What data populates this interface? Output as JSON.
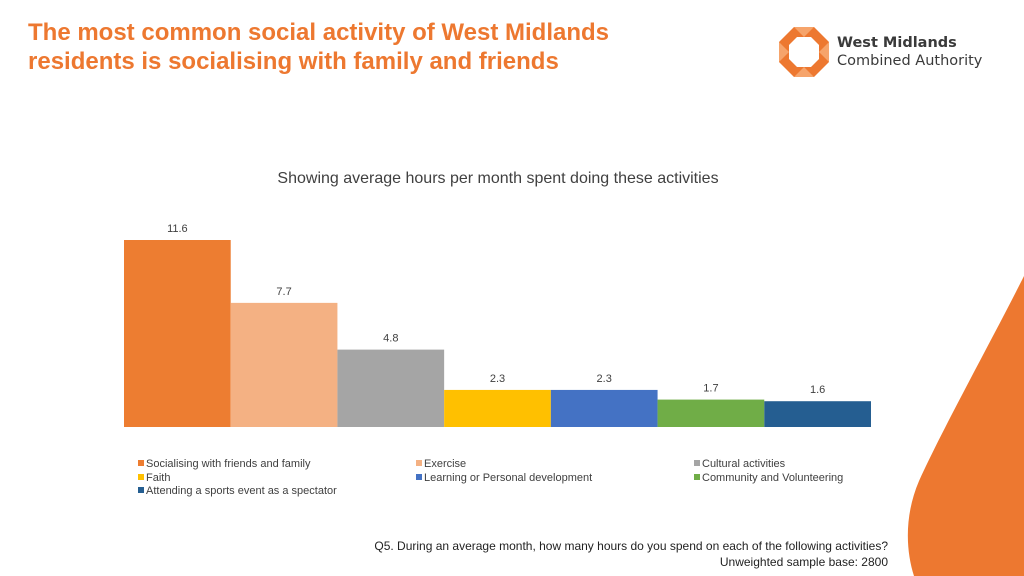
{
  "slide": {
    "title_line1": "The most common social activity of West Midlands",
    "title_line2": "residents is socialising with family and friends"
  },
  "logo": {
    "line1": "West Midlands",
    "line2": "Combined Authority",
    "mark_icon": "wmca-octagon-logo-icon"
  },
  "colors": {
    "title": "#ED7830",
    "accent": "#ED7830"
  },
  "chart_data": {
    "type": "bar",
    "title": "Showing average hours per month spent doing these activities",
    "xlabel": "",
    "ylabel": "",
    "ylim": [
      0,
      11.6
    ],
    "grid": false,
    "legend_position": "bottom",
    "categories": [
      "Socialising with friends and family",
      "Exercise",
      "Cultural activities",
      "Faith",
      "Learning or Personal development",
      "Community and Volunteering",
      "Attending a sports event as a spectator"
    ],
    "values": [
      11.6,
      7.7,
      4.8,
      2.3,
      2.3,
      1.7,
      1.6
    ],
    "value_labels": [
      "11.6",
      "7.7",
      "4.8",
      "2.3",
      "2.3",
      "1.7",
      "1.6"
    ],
    "colors": [
      "#ED7D31",
      "#F4B183",
      "#A5A5A5",
      "#FFC000",
      "#4472C4",
      "#70AD47",
      "#255E91"
    ]
  },
  "footnote": {
    "question": "Q5. During an average month, how many hours do you spend on each of the following activities?",
    "base": "Unweighted sample base: 2800"
  }
}
